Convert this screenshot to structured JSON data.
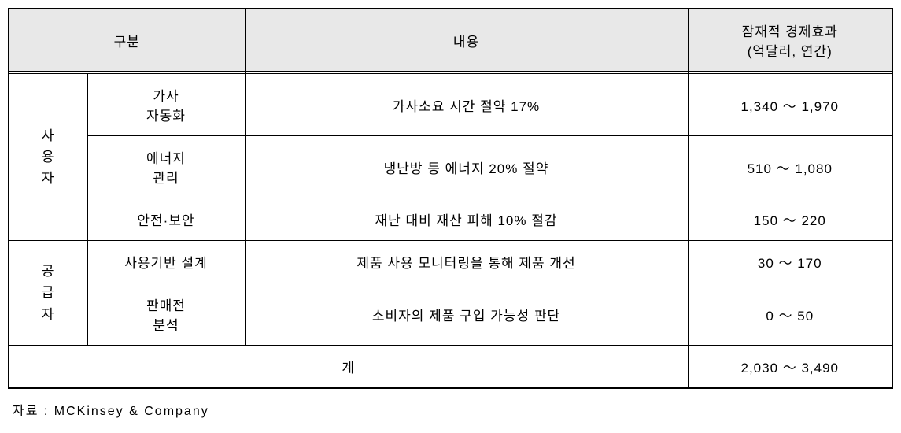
{
  "table": {
    "headers": {
      "category": "구분",
      "content": "내용",
      "effect_line1": "잠재적 경제효과",
      "effect_line2": "(억달러, 연간)"
    },
    "groups": [
      {
        "label": "사\n용\n자",
        "rows": [
          {
            "item_line1": "가사",
            "item_line2": "자동화",
            "content": "가사소요 시간 절약 17%",
            "effect": "1,340 ～ 1,970"
          },
          {
            "item_line1": "에너지",
            "item_line2": "관리",
            "content": "냉난방 등 에너지 20% 절약",
            "effect": "510 ～ 1,080"
          },
          {
            "item_line1": "안전·보안",
            "item_line2": "",
            "content": "재난 대비 재산 피해 10% 절감",
            "effect": "150 ～ 220"
          }
        ]
      },
      {
        "label": "공\n급\n자",
        "rows": [
          {
            "item_line1": "사용기반 설계",
            "item_line2": "",
            "content": "제품 사용 모니터링을 통해 제품 개선",
            "effect": "30 ～ 170"
          },
          {
            "item_line1": "판매전",
            "item_line2": "분석",
            "content": "소비자의 제품 구입 가능성 판단",
            "effect": "0 ～ 50"
          }
        ]
      }
    ],
    "total": {
      "label": "계",
      "effect": "2,030 ～ 3,490"
    }
  },
  "source": "자료 : MCKinsey & Company",
  "style": {
    "header_bg": "#e8e8e8",
    "border_color": "#000000",
    "background": "#ffffff",
    "font_size_cell": 17,
    "font_size_source": 16
  }
}
